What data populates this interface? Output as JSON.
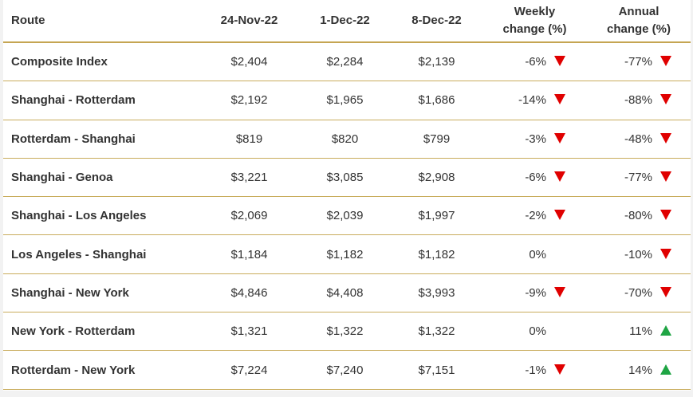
{
  "table": {
    "header": [
      "Route",
      "24-Nov-22",
      "1-Dec-22",
      "8-Dec-22",
      "Weekly change (%)",
      "Annual change (%)"
    ],
    "rows": [
      [
        "Composite Index",
        "$2,404",
        "$2,284",
        "$2,139",
        "-6%",
        "-77%"
      ],
      [
        "Shanghai - Rotterdam",
        "$2,192",
        "$1,965",
        "$1,686",
        "-14%",
        "-88%"
      ],
      [
        "Rotterdam - Shanghai",
        "$819",
        "$820",
        "$799",
        "-3%",
        "-48%"
      ],
      [
        "Shanghai - Genoa",
        "$3,221",
        "$3,085",
        "$2,908",
        "-6%",
        "-77%"
      ],
      [
        "Shanghai - Los Angeles",
        "$2,069",
        "$2,039",
        "$1,997",
        "-2%",
        "-80%"
      ],
      [
        "Los Angeles - Shanghai",
        "$1,184",
        "$1,182",
        "$1,182",
        "0%",
        "-10%"
      ],
      [
        "Shanghai - New York",
        "$4,846",
        "$4,408",
        "$3,993",
        "-9%",
        "-70%"
      ],
      [
        "New York - Rotterdam",
        "$1,321",
        "$1,322",
        "$1,322",
        "0%",
        "11%"
      ],
      [
        "Rotterdam - New York",
        "$7,224",
        "$7,240",
        "$7,151",
        "-1%",
        "14%"
      ]
    ]
  }
}
